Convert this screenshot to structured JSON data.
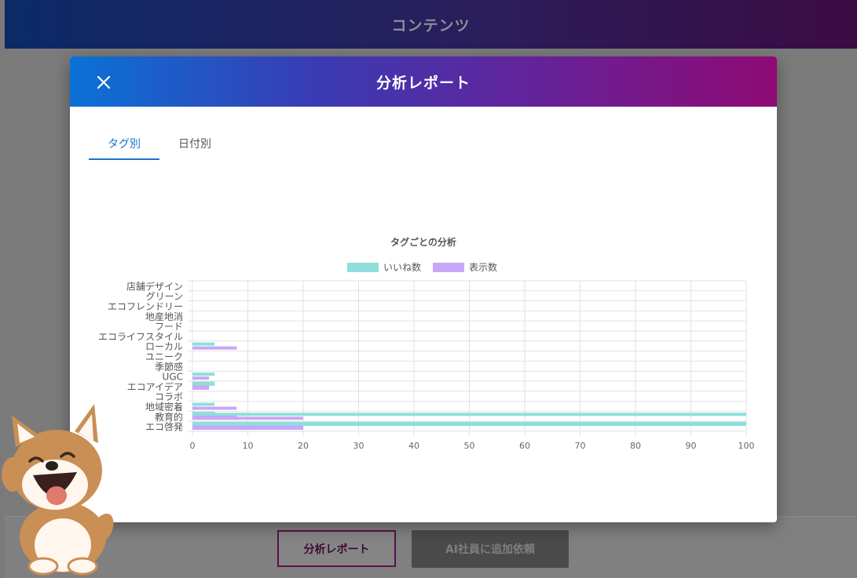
{
  "topbar": {
    "title": "コンテンツ"
  },
  "modal": {
    "title": "分析レポート",
    "tabs": [
      {
        "label": "タグ別",
        "active": true
      },
      {
        "label": "日付別",
        "active": false
      }
    ]
  },
  "footer": {
    "report_button": "分析レポート",
    "request_button": "AI社員に追加依頼"
  },
  "colors": {
    "likes": "#8fdedc",
    "views": "#c9a6f7",
    "accent": "#1a73c9"
  },
  "chart_data": {
    "type": "bar",
    "orientation": "horizontal",
    "title": "タグごとの分析",
    "legend_position": "top",
    "grid": true,
    "xlim": [
      0,
      100
    ],
    "xticks": [
      0,
      10,
      20,
      30,
      40,
      50,
      60,
      70,
      80,
      90,
      100
    ],
    "categories": [
      "店舗デザイン",
      "グリーン",
      "エコフレンドリー",
      "地産地消",
      "フード",
      "エコライフスタイル",
      "ローカル",
      "ユニーク",
      "季節感",
      "UGC",
      "エコアイデア",
      "コラボ",
      "地域密着",
      "教育的",
      "エコ啓発"
    ],
    "series": [
      {
        "name": "いいね数",
        "values": [
          0,
          0,
          0,
          0,
          0,
          0,
          4,
          0,
          0,
          4,
          4,
          0,
          4,
          100,
          100
        ]
      },
      {
        "name": "表示数",
        "values": [
          0,
          0,
          0,
          0,
          0,
          0,
          8,
          0,
          0,
          3,
          3,
          0,
          8,
          20,
          20
        ]
      }
    ],
    "extra_bars": [
      {
        "category_index": 9,
        "offset": 1,
        "likes": 4,
        "views": 3
      },
      {
        "category_index": 12,
        "offset": 1,
        "likes": 4,
        "views": 8
      },
      {
        "category_index": 13,
        "offset": 1,
        "likes": 100,
        "views": 20
      }
    ]
  }
}
